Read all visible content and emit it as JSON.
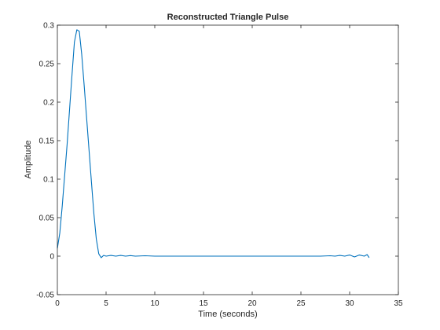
{
  "chart_data": {
    "type": "line",
    "title": "Reconstructed Triangle Pulse",
    "xlabel": "Time (seconds)",
    "ylabel": "Amplitude",
    "xlim": [
      0,
      35
    ],
    "ylim": [
      -0.05,
      0.3
    ],
    "xticks": [
      0,
      5,
      10,
      15,
      20,
      25,
      30,
      35
    ],
    "yticks": [
      -0.05,
      0,
      0.05,
      0.1,
      0.15,
      0.2,
      0.25,
      0.3
    ],
    "xtick_labels": [
      "0",
      "5",
      "10",
      "15",
      "20",
      "25",
      "30",
      "35"
    ],
    "ytick_labels": [
      "-0.05",
      "0",
      "0.05",
      "0.1",
      "0.15",
      "0.2",
      "0.25",
      "0.3"
    ],
    "grid": false,
    "series": [
      {
        "color": "#0072bd",
        "x": [
          0,
          0.25,
          0.5,
          0.75,
          1.0,
          1.25,
          1.5,
          1.75,
          2.0,
          2.25,
          2.5,
          2.75,
          3.0,
          3.25,
          3.5,
          3.75,
          4.0,
          4.25,
          4.5,
          4.75,
          5.0,
          5.5,
          6.0,
          6.5,
          7.0,
          7.5,
          8.0,
          9.0,
          10.0,
          12.0,
          15.0,
          18.0,
          20.0,
          22.0,
          25.0,
          27.0,
          28.0,
          28.5,
          29.0,
          29.5,
          30.0,
          30.5,
          31.0,
          31.5,
          31.8,
          32.0
        ],
        "y": [
          0.01,
          0.03,
          0.065,
          0.105,
          0.145,
          0.19,
          0.235,
          0.278,
          0.294,
          0.292,
          0.262,
          0.222,
          0.18,
          0.138,
          0.096,
          0.055,
          0.022,
          0.003,
          -0.002,
          0.001,
          0.0,
          0.001,
          0.0,
          0.001,
          0.0,
          0.0007,
          0.0,
          0.0005,
          0.0,
          0.0,
          0.0,
          0.0,
          0.0,
          0.0,
          0.0,
          0.0,
          0.0005,
          0.0,
          0.001,
          0.0,
          0.0015,
          -0.001,
          0.0015,
          0.0,
          0.002,
          -0.002
        ]
      }
    ]
  }
}
